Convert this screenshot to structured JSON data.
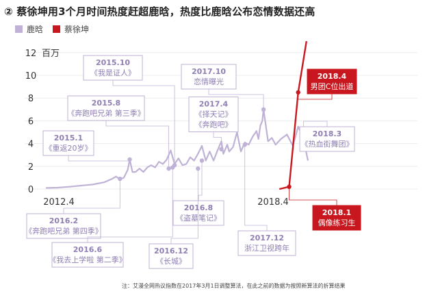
{
  "title": "② 蔡徐坤用3个月时间热度赶超鹿晗，热度比鹿晗公布恋情数据还高",
  "legend": [
    {
      "name": "鹿晗",
      "color": "#bfb2d6"
    },
    {
      "name": "蔡徐坤",
      "color": "#c8171e"
    }
  ],
  "note": "注：艾漫全网热议指数在2017年3月1日调整算法，在此之前的数据为按照新算法的折算结果",
  "colors": {
    "luhan": "#bfb2d6",
    "cxk": "#c8171e",
    "grid": "#ececec",
    "label_bg": "#ffffff"
  },
  "chart_data": {
    "type": "line",
    "title": "",
    "xlabel": "",
    "ylabel": "",
    "y_unit": "百万",
    "yticks": [
      0,
      2,
      4,
      6,
      8,
      10,
      12
    ],
    "x_range": [
      2012.4,
      2018.6
    ],
    "ylim": [
      0,
      12
    ],
    "grid": "horizontal",
    "x_axis_labels": [
      "2012.4",
      "2018.4"
    ],
    "series": [
      {
        "name": "鹿晗",
        "points": [
          [
            2012.4,
            0.1
          ],
          [
            2012.7,
            0.12
          ],
          [
            2013.0,
            0.2
          ],
          [
            2013.3,
            0.3
          ],
          [
            2013.6,
            0.4
          ],
          [
            2013.9,
            0.6
          ],
          [
            2014.1,
            0.9
          ],
          [
            2014.2,
            1.1
          ],
          [
            2014.3,
            0.85
          ],
          [
            2014.4,
            1.0
          ],
          [
            2014.5,
            1.7
          ],
          [
            2014.55,
            2.6
          ],
          [
            2014.62,
            1.5
          ],
          [
            2014.7,
            1.5
          ],
          [
            2014.8,
            1.8
          ],
          [
            2014.9,
            1.5
          ],
          [
            2015.0,
            1.9
          ],
          [
            2015.1,
            2.1
          ],
          [
            2015.2,
            1.9
          ],
          [
            2015.3,
            2.4
          ],
          [
            2015.4,
            2.2
          ],
          [
            2015.5,
            2.6
          ],
          [
            2015.6,
            3.4
          ],
          [
            2015.7,
            2.2
          ],
          [
            2015.8,
            2.7
          ],
          [
            2015.9,
            2.1
          ],
          [
            2016.0,
            2.2
          ],
          [
            2016.1,
            2.8
          ],
          [
            2016.2,
            2.5
          ],
          [
            2016.3,
            3.1
          ],
          [
            2016.4,
            3.8
          ],
          [
            2016.5,
            2.5
          ],
          [
            2016.6,
            3.3
          ],
          [
            2016.7,
            2.5
          ],
          [
            2016.8,
            3.4
          ],
          [
            2016.9,
            4.2
          ],
          [
            2016.95,
            3.1
          ],
          [
            2017.05,
            3.9
          ],
          [
            2017.1,
            3.3
          ],
          [
            2017.2,
            3.7
          ],
          [
            2017.3,
            5.0
          ],
          [
            2017.4,
            3.3
          ],
          [
            2017.5,
            4.1
          ],
          [
            2017.6,
            3.9
          ],
          [
            2017.7,
            4.6
          ],
          [
            2017.8,
            5.1
          ],
          [
            2017.85,
            4.4
          ],
          [
            2017.9,
            5.6
          ],
          [
            2017.95,
            6.0
          ],
          [
            2017.98,
            7.0
          ],
          [
            2018.05,
            4.2
          ],
          [
            2018.1,
            4.5
          ],
          [
            2018.15,
            3.9
          ],
          [
            2018.22,
            4.4
          ],
          [
            2018.3,
            4.8
          ],
          [
            2018.38,
            3.8
          ],
          [
            2018.45,
            5.5
          ],
          [
            2018.52,
            4.4
          ],
          [
            2018.58,
            2.5
          ]
        ]
      },
      {
        "name": "蔡徐坤",
        "points": [
          [
            2018.2,
            0.0
          ],
          [
            2018.33,
            0.2
          ],
          [
            2018.45,
            8.5
          ],
          [
            2018.56,
            13.0
          ]
        ]
      }
    ],
    "annotations": [
      {
        "series": "鹿晗",
        "x": 2014.55,
        "y": 2.6,
        "lines": [
          "2015.1",
          "《重返20岁》"
        ],
        "box": "left"
      },
      {
        "series": "鹿晗",
        "x": 2015.55,
        "y": 1.8,
        "lines": [
          "2015.8",
          "《奔跑吧兄弟 第三季》"
        ],
        "box": "left"
      },
      {
        "series": "鹿晗",
        "x": 2015.7,
        "y": 2.1,
        "lines": [
          "2015.10",
          "《我是证人》"
        ],
        "box": "left"
      },
      {
        "series": "鹿晗",
        "x": 2014.3,
        "y": 0.9,
        "lines": [
          "2016.2",
          "《奔跑吧兄弟 第四季》"
        ],
        "box": "left"
      },
      {
        "series": "鹿晗",
        "x": 2015.65,
        "y": 1.9,
        "lines": [
          "2016.6",
          "《我去上学啦 第二季》"
        ],
        "box": "left"
      },
      {
        "series": "鹿晗",
        "x": 2016.4,
        "y": 2.5,
        "lines": [
          "2016.8",
          "《盗墓笔记》"
        ],
        "box": "left"
      },
      {
        "series": "鹿晗",
        "x": 2016.3,
        "y": 1.8,
        "lines": [
          "2016.12",
          "《长城》"
        ],
        "box": "left"
      },
      {
        "series": "鹿晗",
        "x": 2016.9,
        "y": 3.5,
        "lines": [
          "2017.4",
          "《择天记》",
          "《奔跑吧》"
        ],
        "box": "left"
      },
      {
        "series": "鹿晗",
        "x": 2017.98,
        "y": 7.0,
        "lines": [
          "2017.10",
          "恋情曝光"
        ],
        "box": "left"
      },
      {
        "series": "鹿晗",
        "x": 2017.5,
        "y": 3.9,
        "lines": [
          "2017.12",
          "浙江卫视跨年"
        ],
        "box": "left"
      },
      {
        "series": "鹿晗",
        "x": 2018.52,
        "y": 4.4,
        "lines": [
          "2018.3",
          "《热血街舞团》"
        ],
        "box": "left"
      },
      {
        "series": "蔡徐坤",
        "x": 2018.45,
        "y": 8.5,
        "lines": [
          "2018.4",
          "男团C位出道"
        ],
        "box": "right"
      },
      {
        "series": "蔡徐坤",
        "x": 2018.33,
        "y": 0.2,
        "lines": [
          "2018.1",
          "偶像练习生"
        ],
        "box": "right"
      }
    ]
  }
}
